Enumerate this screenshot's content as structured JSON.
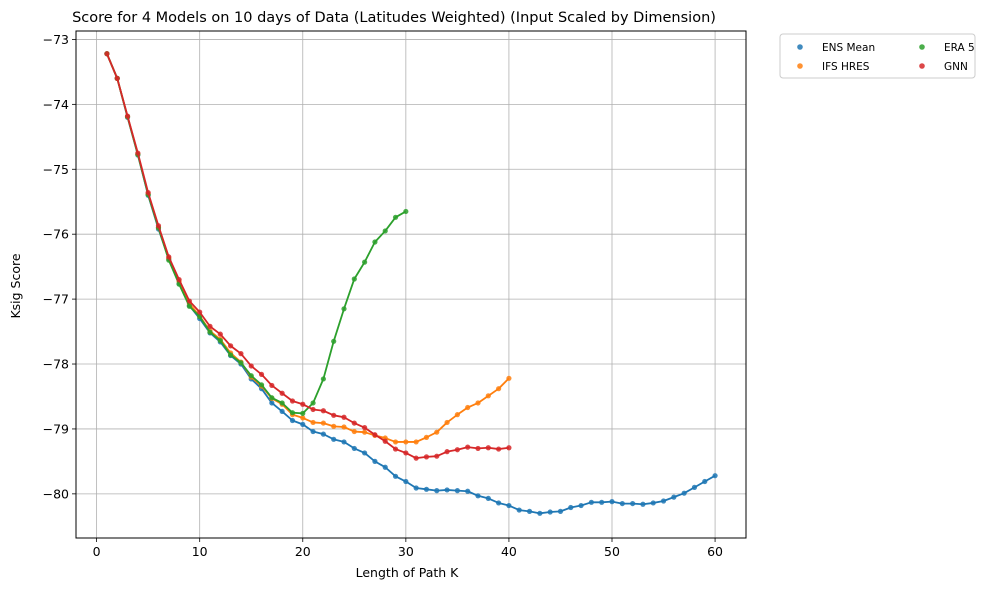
{
  "chart_data": {
    "type": "line",
    "title": "Score for 4 Models on 10 days of Data (Latitudes Weighted) (Input Scaled by Dimension)",
    "xlabel": "Length of Path K",
    "ylabel": "Ksig Score",
    "xlim": [
      -2,
      63
    ],
    "ylim": [
      -80.68,
      -72.87
    ],
    "xticks": [
      0,
      10,
      20,
      30,
      40,
      50,
      60
    ],
    "xtick_labels": [
      "0",
      "10",
      "20",
      "30",
      "40",
      "50",
      "60"
    ],
    "yticks": [
      -80,
      -79,
      -78,
      -77,
      -76,
      -75,
      -74,
      -73
    ],
    "ytick_labels": [
      "−80",
      "−79",
      "−78",
      "−77",
      "−76",
      "−75",
      "−74",
      "−73"
    ],
    "grid": true,
    "legend_position": "outside-top-right",
    "series": [
      {
        "name": "ENS Mean",
        "color": "#1f77b4",
        "x": [
          1,
          2,
          3,
          4,
          5,
          6,
          7,
          8,
          9,
          10,
          11,
          12,
          13,
          14,
          15,
          16,
          17,
          18,
          19,
          20,
          21,
          22,
          23,
          24,
          25,
          26,
          27,
          28,
          29,
          30,
          31,
          32,
          33,
          34,
          35,
          36,
          37,
          38,
          39,
          40,
          41,
          42,
          43,
          44,
          45,
          46,
          47,
          48,
          49,
          50,
          51,
          52,
          53,
          54,
          55,
          56,
          57,
          58,
          59,
          60
        ],
        "y": [
          -73.22,
          -73.6,
          -74.2,
          -74.78,
          -75.4,
          -75.92,
          -76.38,
          -76.76,
          -77.1,
          -77.3,
          -77.52,
          -77.66,
          -77.87,
          -78.0,
          -78.23,
          -78.38,
          -78.6,
          -78.73,
          -78.87,
          -78.93,
          -79.04,
          -79.08,
          -79.16,
          -79.2,
          -79.3,
          -79.37,
          -79.5,
          -79.59,
          -79.73,
          -79.81,
          -79.91,
          -79.93,
          -79.95,
          -79.94,
          -79.95,
          -79.96,
          -80.03,
          -80.07,
          -80.14,
          -80.18,
          -80.25,
          -80.27,
          -80.3,
          -80.28,
          -80.27,
          -80.21,
          -80.18,
          -80.13,
          -80.13,
          -80.12,
          -80.15,
          -80.15,
          -80.16,
          -80.14,
          -80.11,
          -80.05,
          -79.99,
          -79.9,
          -79.81,
          -79.72
        ]
      },
      {
        "name": "IFS HRES",
        "color": "#ff7f0e",
        "x": [
          1,
          2,
          3,
          4,
          5,
          6,
          7,
          8,
          9,
          10,
          11,
          12,
          13,
          14,
          15,
          16,
          17,
          18,
          19,
          20,
          21,
          22,
          23,
          24,
          25,
          26,
          27,
          28,
          29,
          30,
          31,
          32,
          33,
          34,
          35,
          36,
          37,
          38,
          39,
          40
        ],
        "y": [
          -73.22,
          -73.6,
          -74.19,
          -74.77,
          -75.38,
          -75.9,
          -76.37,
          -76.73,
          -77.07,
          -77.26,
          -77.49,
          -77.62,
          -77.83,
          -77.97,
          -78.2,
          -78.34,
          -78.53,
          -78.62,
          -78.78,
          -78.83,
          -78.9,
          -78.91,
          -78.96,
          -78.97,
          -79.04,
          -79.05,
          -79.1,
          -79.14,
          -79.2,
          -79.2,
          -79.2,
          -79.13,
          -79.05,
          -78.9,
          -78.78,
          -78.67,
          -78.6,
          -78.49,
          -78.38,
          -78.22
        ]
      },
      {
        "name": "ERA 5",
        "color": "#2ca02c",
        "x": [
          1,
          2,
          3,
          4,
          5,
          6,
          7,
          8,
          9,
          10,
          11,
          12,
          13,
          14,
          15,
          16,
          17,
          18,
          19,
          20,
          21,
          22,
          23,
          24,
          25,
          26,
          27,
          28,
          29,
          30
        ],
        "y": [
          -73.22,
          -73.6,
          -74.19,
          -74.77,
          -75.39,
          -75.9,
          -76.4,
          -76.77,
          -77.11,
          -77.27,
          -77.51,
          -77.64,
          -77.86,
          -77.98,
          -78.18,
          -78.32,
          -78.52,
          -78.6,
          -78.75,
          -78.76,
          -78.6,
          -78.23,
          -77.65,
          -77.15,
          -76.69,
          -76.43,
          -76.12,
          -75.95,
          -75.74,
          -75.65
        ]
      },
      {
        "name": "GNN",
        "color": "#d62728",
        "x": [
          1,
          2,
          3,
          4,
          5,
          6,
          7,
          8,
          9,
          10,
          11,
          12,
          13,
          14,
          15,
          16,
          17,
          18,
          19,
          20,
          21,
          22,
          23,
          24,
          25,
          26,
          27,
          28,
          29,
          30,
          31,
          32,
          33,
          34,
          35,
          36,
          37,
          38,
          39,
          40
        ],
        "y": [
          -73.22,
          -73.6,
          -74.18,
          -74.75,
          -75.36,
          -75.87,
          -76.35,
          -76.7,
          -77.03,
          -77.2,
          -77.42,
          -77.54,
          -77.72,
          -77.84,
          -78.03,
          -78.16,
          -78.33,
          -78.45,
          -78.57,
          -78.62,
          -78.7,
          -78.72,
          -78.79,
          -78.82,
          -78.91,
          -78.98,
          -79.09,
          -79.19,
          -79.31,
          -79.37,
          -79.45,
          -79.43,
          -79.42,
          -79.35,
          -79.32,
          -79.28,
          -79.3,
          -79.29,
          -79.31,
          -79.29
        ]
      }
    ]
  }
}
